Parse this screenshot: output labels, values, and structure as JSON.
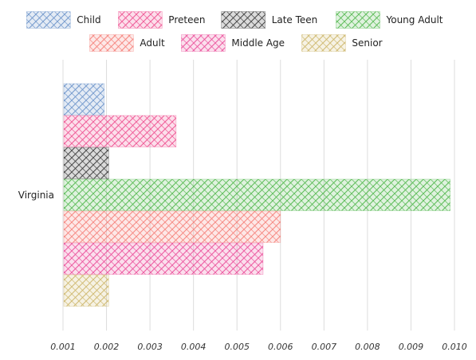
{
  "chart_data": {
    "type": "bar",
    "orientation": "horizontal",
    "categories": [
      "Virginia"
    ],
    "series": [
      {
        "name": "Child",
        "color": "#6b93c9",
        "values": [
          0.00195
        ]
      },
      {
        "name": "Preteen",
        "color": "#ef4f8f",
        "values": [
          0.0036
        ]
      },
      {
        "name": "Late Teen",
        "color": "#3a3a3a",
        "values": [
          0.00205
        ]
      },
      {
        "name": "Young Adult",
        "color": "#52b84e",
        "values": [
          0.0099
        ]
      },
      {
        "name": "Adult",
        "color": "#f57f78",
        "values": [
          0.006
        ]
      },
      {
        "name": "Middle Age",
        "color": "#eb4d99",
        "values": [
          0.0056
        ]
      },
      {
        "name": "Senior",
        "color": "#cdb66a",
        "values": [
          0.00205
        ]
      }
    ],
    "xlim": [
      0.001,
      0.01
    ],
    "xticks": [
      "0.001",
      "0.002",
      "0.003",
      "0.004",
      "0.005",
      "0.006",
      "0.007",
      "0.008",
      "0.009",
      "0.010"
    ],
    "grid": true,
    "legend_position": "top",
    "style": "hand-drawn hatched"
  }
}
